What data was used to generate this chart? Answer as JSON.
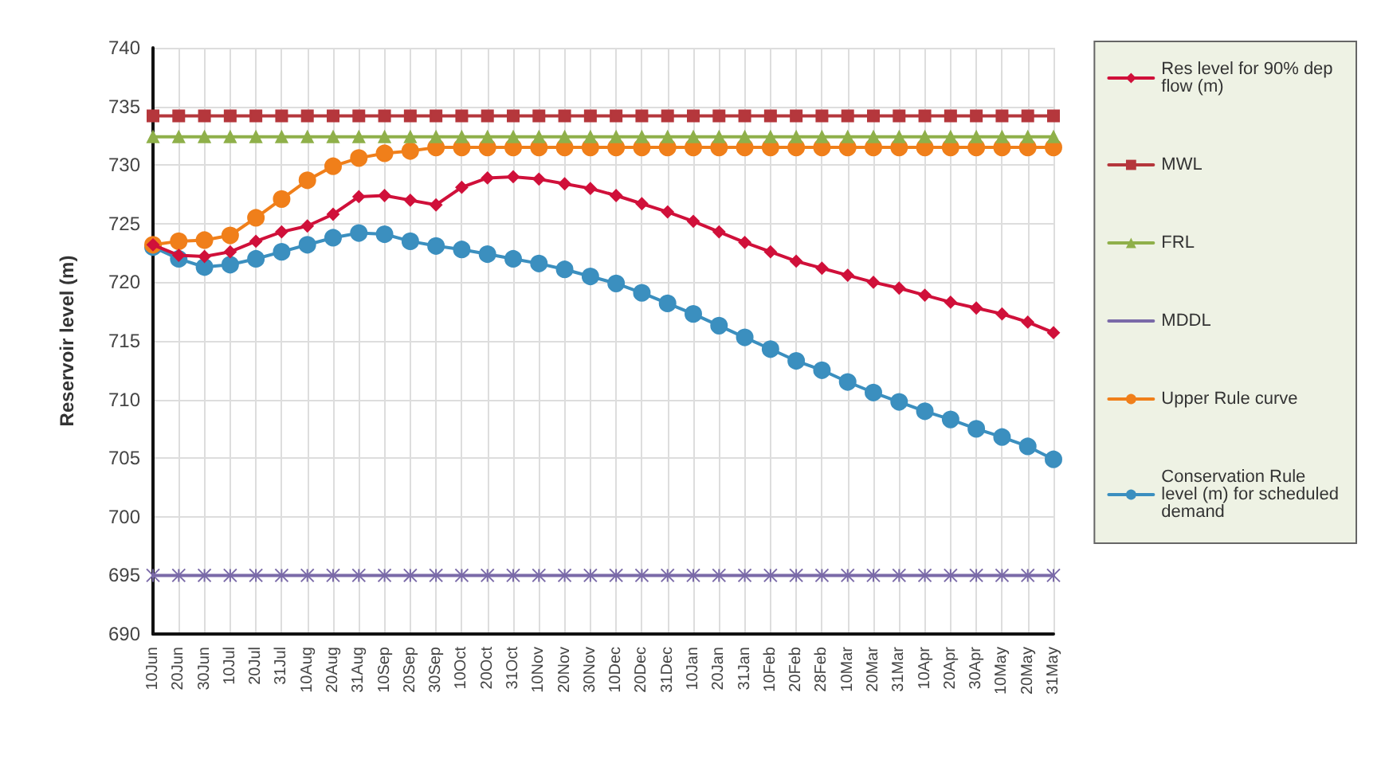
{
  "chart_data": {
    "type": "line",
    "ylabel": "Reservoir level (m)",
    "categories": [
      "10Jun",
      "20Jun",
      "30Jun",
      "10Jul",
      "20Jul",
      "31Jul",
      "10Aug",
      "20Aug",
      "31Aug",
      "10Sep",
      "20Sep",
      "30Sep",
      "10Oct",
      "20Oct",
      "31Oct",
      "10Nov",
      "20Nov",
      "30Nov",
      "10Dec",
      "20Dec",
      "31Dec",
      "10Jan",
      "20Jan",
      "31Jan",
      "10Feb",
      "20Feb",
      "28Feb",
      "10Mar",
      "20Mar",
      "31Mar",
      "10Apr",
      "20Apr",
      "30Apr",
      "10May",
      "20May",
      "31May"
    ],
    "series": [
      {
        "name": "Res level for 90% dep flow (m)",
        "color": "#d0103a",
        "marker": "diamond",
        "values": [
          723.2,
          722.3,
          722.2,
          722.6,
          723.5,
          724.3,
          724.8,
          725.8,
          727.3,
          727.4,
          727.0,
          726.6,
          728.1,
          728.9,
          729.0,
          728.8,
          728.4,
          728.0,
          727.4,
          726.7,
          726.0,
          725.2,
          724.3,
          723.4,
          722.6,
          721.8,
          721.2,
          720.6,
          720.0,
          719.5,
          718.9,
          718.3,
          717.8,
          717.3,
          716.6,
          715.7
        ]
      },
      {
        "name": "MWL",
        "color": "#b5373c",
        "marker": "square",
        "values": [
          734.2,
          734.2,
          734.2,
          734.2,
          734.2,
          734.2,
          734.2,
          734.2,
          734.2,
          734.2,
          734.2,
          734.2,
          734.2,
          734.2,
          734.2,
          734.2,
          734.2,
          734.2,
          734.2,
          734.2,
          734.2,
          734.2,
          734.2,
          734.2,
          734.2,
          734.2,
          734.2,
          734.2,
          734.2,
          734.2,
          734.2,
          734.2,
          734.2,
          734.2,
          734.2,
          734.2
        ]
      },
      {
        "name": "FRL",
        "color": "#8fb04a",
        "marker": "triangle",
        "values": [
          732.4,
          732.4,
          732.4,
          732.4,
          732.4,
          732.4,
          732.4,
          732.4,
          732.4,
          732.4,
          732.4,
          732.4,
          732.4,
          732.4,
          732.4,
          732.4,
          732.4,
          732.4,
          732.4,
          732.4,
          732.4,
          732.4,
          732.4,
          732.4,
          732.4,
          732.4,
          732.4,
          732.4,
          732.4,
          732.4,
          732.4,
          732.4,
          732.4,
          732.4,
          732.4,
          732.4
        ]
      },
      {
        "name": "MDDL",
        "color": "#7a6aa8",
        "marker": "cross",
        "values": [
          695,
          695,
          695,
          695,
          695,
          695,
          695,
          695,
          695,
          695,
          695,
          695,
          695,
          695,
          695,
          695,
          695,
          695,
          695,
          695,
          695,
          695,
          695,
          695,
          695,
          695,
          695,
          695,
          695,
          695,
          695,
          695,
          695,
          695,
          695,
          695
        ]
      },
      {
        "name": "Upper Rule curve",
        "color": "#f07f1a",
        "marker": "circle",
        "values": [
          723.2,
          723.5,
          723.6,
          724.0,
          725.5,
          727.1,
          728.7,
          729.9,
          730.6,
          731.0,
          731.2,
          731.5,
          731.5,
          731.5,
          731.5,
          731.5,
          731.5,
          731.5,
          731.5,
          731.5,
          731.5,
          731.5,
          731.5,
          731.5,
          731.5,
          731.5,
          731.5,
          731.5,
          731.5,
          731.5,
          731.5,
          731.5,
          731.5,
          731.5,
          731.5,
          731.5
        ]
      },
      {
        "name": "Conservation Rule level (m) for scheduled demand",
        "color": "#3b8fbf",
        "marker": "circle",
        "values": [
          723.0,
          722.0,
          721.3,
          721.5,
          722.0,
          722.6,
          723.2,
          723.8,
          724.2,
          724.1,
          723.5,
          723.1,
          722.8,
          722.4,
          722.0,
          721.6,
          721.1,
          720.5,
          719.9,
          719.1,
          718.2,
          717.3,
          716.3,
          715.3,
          714.3,
          713.3,
          712.5,
          711.5,
          710.6,
          709.8,
          709.0,
          708.3,
          707.5,
          706.8,
          706.0,
          704.9
        ]
      }
    ],
    "ylim": [
      690,
      740
    ],
    "yticks": [
      690,
      695,
      700,
      705,
      710,
      715,
      720,
      725,
      730,
      735,
      740
    ],
    "grid": true,
    "legend": "right",
    "line_style": "solid"
  }
}
